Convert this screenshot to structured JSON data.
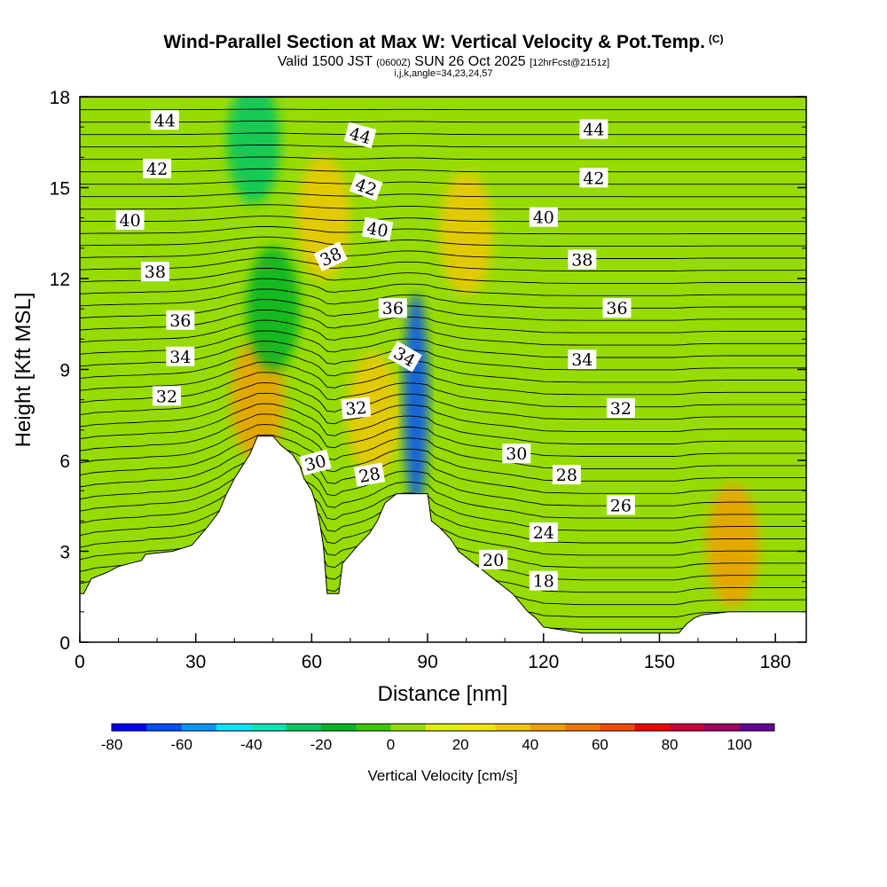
{
  "header": {
    "title": "Wind-Parallel Section at Max W: Vertical Velocity & Pot.Temp.",
    "copyright": "(C)",
    "valid_prefix": "Valid 1500 JST",
    "valid_utc": "(0600Z)",
    "valid_date": "SUN 26 Oct 2025",
    "forecast": "[12hrFcst@2151z]",
    "indices": "i,j,k,angle=34,23,24,57"
  },
  "chart_data": {
    "type": "heatmap",
    "xlabel": "Distance [nm]",
    "ylabel": "Height [Kft MSL]",
    "xlim": [
      0,
      188
    ],
    "ylim": [
      0,
      18
    ],
    "x_ticks": [
      "0",
      "30",
      "60",
      "90",
      "120",
      "150",
      "180"
    ],
    "y_ticks": [
      "0",
      "3",
      "6",
      "9",
      "12",
      "15",
      "18"
    ],
    "colorbar": {
      "label": "Vertical Velocity [cm/s]",
      "ticks": [
        "-80",
        "-60",
        "-40",
        "-20",
        "0",
        "20",
        "40",
        "60",
        "80",
        "100"
      ],
      "min": -80,
      "max": 110,
      "step": 10,
      "colors": [
        "#0000ff",
        "#0050ff",
        "#0096ff",
        "#00e6ff",
        "#00e6b4",
        "#00c864",
        "#00b428",
        "#3cc800",
        "#96dc00",
        "#dcf000",
        "#f0e600",
        "#f0c800",
        "#f0a000",
        "#f07800",
        "#f04b00",
        "#f00000",
        "#c8003c",
        "#a00064",
        "#640096"
      ]
    },
    "terrain_kft": [
      [
        0,
        1.6
      ],
      [
        1,
        1.6
      ],
      [
        3,
        2.1
      ],
      [
        7,
        2.3
      ],
      [
        10,
        2.5
      ],
      [
        13,
        2.6
      ],
      [
        16,
        2.7
      ],
      [
        17,
        2.9
      ],
      [
        24,
        3.0
      ],
      [
        29,
        3.2
      ],
      [
        33,
        3.8
      ],
      [
        36,
        4.3
      ],
      [
        38,
        4.9
      ],
      [
        40,
        5.4
      ],
      [
        42,
        5.8
      ],
      [
        44,
        6.2
      ],
      [
        46,
        6.8
      ],
      [
        50,
        6.8
      ],
      [
        52,
        6.5
      ],
      [
        55,
        6.2
      ],
      [
        57,
        5.8
      ],
      [
        58,
        5.4
      ],
      [
        60,
        5.0
      ],
      [
        61,
        4.6
      ],
      [
        62,
        4.0
      ],
      [
        63,
        3.2
      ],
      [
        64,
        1.6
      ],
      [
        67,
        1.6
      ],
      [
        68,
        2.6
      ],
      [
        70,
        2.9
      ],
      [
        72,
        3.2
      ],
      [
        75,
        3.6
      ],
      [
        77,
        4.0
      ],
      [
        79,
        4.6
      ],
      [
        82,
        4.9
      ],
      [
        87,
        4.9
      ],
      [
        90,
        4.9
      ],
      [
        91,
        4.0
      ],
      [
        93,
        3.8
      ],
      [
        96,
        3.4
      ],
      [
        98,
        3.0
      ],
      [
        101,
        2.7
      ],
      [
        104,
        2.4
      ],
      [
        107,
        2.1
      ],
      [
        110,
        1.8
      ],
      [
        112,
        1.6
      ],
      [
        114,
        1.3
      ],
      [
        116,
        1.0
      ],
      [
        118,
        0.8
      ],
      [
        120,
        0.5
      ],
      [
        130,
        0.3
      ],
      [
        140,
        0.3
      ],
      [
        155,
        0.3
      ],
      [
        157,
        0.6
      ],
      [
        159,
        0.8
      ],
      [
        161,
        0.9
      ],
      [
        168,
        1.0
      ],
      [
        175,
        1.0
      ],
      [
        188,
        1.0
      ]
    ],
    "w_features": [
      {
        "kind": "updraft",
        "x": 46,
        "y": 8.0,
        "w_cms": 40
      },
      {
        "kind": "updraft",
        "x": 76,
        "y": 7.5,
        "w_cms": 30
      },
      {
        "kind": "updraft",
        "x": 63,
        "y": 14.0,
        "w_cms": 30
      },
      {
        "kind": "updraft",
        "x": 100,
        "y": 13.5,
        "w_cms": 30
      },
      {
        "kind": "updraft",
        "x": 169,
        "y": 3.2,
        "w_cms": 40
      },
      {
        "kind": "downdraft",
        "x": 87,
        "y": 8.0,
        "w_cms": -70
      },
      {
        "kind": "downdraft",
        "x": 50,
        "y": 11.0,
        "w_cms": -20
      },
      {
        "kind": "downdraft",
        "x": 45,
        "y": 16.5,
        "w_cms": -30
      }
    ],
    "isentropes_K_offset": {
      "note": "Potential temperature contours labeled in (K-270)",
      "levels": [
        18,
        20,
        24,
        26,
        28,
        30,
        32,
        34,
        36,
        38,
        40,
        42,
        44
      ]
    },
    "contour_labels": [
      {
        "text": "44",
        "x": 22,
        "y": 17.2,
        "rot": 0
      },
      {
        "text": "42",
        "x": 20,
        "y": 15.6,
        "rot": 0
      },
      {
        "text": "40",
        "x": 13,
        "y": 13.9,
        "rot": 0
      },
      {
        "text": "38",
        "x": 19.5,
        "y": 12.2,
        "rot": 0
      },
      {
        "text": "36",
        "x": 26,
        "y": 10.6,
        "rot": 0
      },
      {
        "text": "34",
        "x": 26,
        "y": 9.4,
        "rot": 0
      },
      {
        "text": "32",
        "x": 22.5,
        "y": 8.1,
        "rot": 0
      },
      {
        "text": "44",
        "x": 72.5,
        "y": 16.7,
        "rot": 15
      },
      {
        "text": "42",
        "x": 74,
        "y": 15.0,
        "rot": 20
      },
      {
        "text": "40",
        "x": 77,
        "y": 13.6,
        "rot": 10
      },
      {
        "text": "38",
        "x": 65,
        "y": 12.7,
        "rot": -25
      },
      {
        "text": "36",
        "x": 81,
        "y": 11.0,
        "rot": 0
      },
      {
        "text": "34",
        "x": 84,
        "y": 9.4,
        "rot": 30
      },
      {
        "text": "32",
        "x": 71.5,
        "y": 7.7,
        "rot": -5
      },
      {
        "text": "30",
        "x": 61,
        "y": 5.9,
        "rot": -15
      },
      {
        "text": "28",
        "x": 75,
        "y": 5.5,
        "rot": -10
      },
      {
        "text": "44",
        "x": 133,
        "y": 16.9,
        "rot": 0
      },
      {
        "text": "42",
        "x": 133,
        "y": 15.3,
        "rot": 0
      },
      {
        "text": "40",
        "x": 120,
        "y": 14.0,
        "rot": 0
      },
      {
        "text": "38",
        "x": 130,
        "y": 12.6,
        "rot": 0
      },
      {
        "text": "36",
        "x": 139,
        "y": 11.0,
        "rot": 0
      },
      {
        "text": "34",
        "x": 130,
        "y": 9.3,
        "rot": 0
      },
      {
        "text": "32",
        "x": 140,
        "y": 7.7,
        "rot": 0
      },
      {
        "text": "30",
        "x": 113,
        "y": 6.2,
        "rot": 0
      },
      {
        "text": "28",
        "x": 126,
        "y": 5.5,
        "rot": 0
      },
      {
        "text": "26",
        "x": 140,
        "y": 4.5,
        "rot": 0
      },
      {
        "text": "24",
        "x": 120,
        "y": 3.6,
        "rot": 0
      },
      {
        "text": "20",
        "x": 107,
        "y": 2.7,
        "rot": 0
      },
      {
        "text": "18",
        "x": 120,
        "y": 2.0,
        "rot": 0
      }
    ]
  }
}
